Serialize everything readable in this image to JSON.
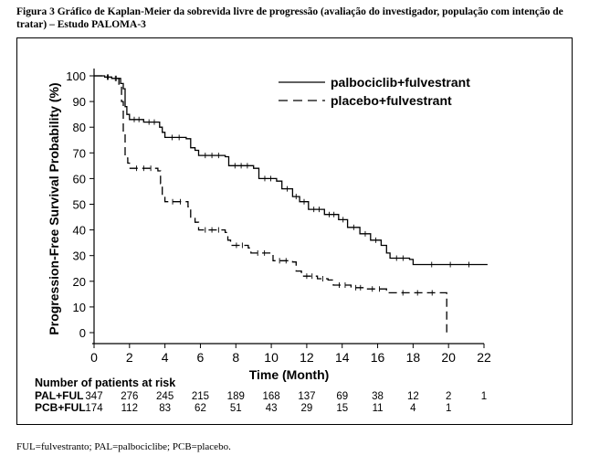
{
  "caption": "Figura 3 Gráfico de Kaplan-Meier da sobrevida livre de progressão (avaliação do investigador, população com intenção de tratar) – Estudo PALOMA-3",
  "footnote": "FUL=fulvestranto; PAL=palbociclibe; PCB=placebo.",
  "chart_data": {
    "type": "line",
    "title": "",
    "xlabel": "Time (Month)",
    "ylabel": "Progression-Free Survival Probability (%)",
    "xlim": [
      0,
      22
    ],
    "ylim": [
      0,
      100
    ],
    "x_ticks": [
      0,
      2,
      4,
      6,
      8,
      10,
      12,
      14,
      16,
      18,
      20,
      22
    ],
    "y_ticks": [
      0,
      10,
      20,
      30,
      40,
      50,
      60,
      70,
      80,
      90,
      100
    ],
    "legend_position": "top-right",
    "series": [
      {
        "name": "palbociclib+fulvestrant",
        "style": "solid",
        "points": [
          [
            0,
            100
          ],
          [
            0.6,
            99.5
          ],
          [
            1,
            99
          ],
          [
            1.5,
            97
          ],
          [
            1.65,
            95
          ],
          [
            1.75,
            88
          ],
          [
            1.85,
            85
          ],
          [
            2,
            83
          ],
          [
            2.8,
            82
          ],
          [
            3.7,
            80
          ],
          [
            3.85,
            78
          ],
          [
            4,
            76
          ],
          [
            5.2,
            75.5
          ],
          [
            5.45,
            72
          ],
          [
            5.7,
            71
          ],
          [
            5.9,
            69
          ],
          [
            7.4,
            68.5
          ],
          [
            7.6,
            65
          ],
          [
            9,
            64
          ],
          [
            9.3,
            60
          ],
          [
            10.3,
            59
          ],
          [
            10.6,
            56
          ],
          [
            11.2,
            53
          ],
          [
            11.6,
            51
          ],
          [
            12.1,
            48
          ],
          [
            13,
            46
          ],
          [
            13.8,
            44
          ],
          [
            14.3,
            41
          ],
          [
            15,
            38.5
          ],
          [
            15.6,
            36
          ],
          [
            16.2,
            34
          ],
          [
            16.5,
            31
          ],
          [
            16.7,
            29
          ],
          [
            17.8,
            28.5
          ],
          [
            18,
            26.5
          ],
          [
            22.2,
            26.5
          ]
        ]
      },
      {
        "name": "placebo+fulvestrant",
        "style": "dashed",
        "points": [
          [
            0,
            100
          ],
          [
            0.5,
            99.5
          ],
          [
            1,
            99
          ],
          [
            1.4,
            96
          ],
          [
            1.55,
            90
          ],
          [
            1.65,
            78
          ],
          [
            1.75,
            68
          ],
          [
            1.9,
            66
          ],
          [
            2,
            64
          ],
          [
            3.6,
            63
          ],
          [
            3.75,
            58
          ],
          [
            3.85,
            53
          ],
          [
            4,
            51
          ],
          [
            5.3,
            49
          ],
          [
            5.45,
            45
          ],
          [
            5.7,
            43
          ],
          [
            5.9,
            40
          ],
          [
            7.4,
            39
          ],
          [
            7.55,
            36
          ],
          [
            7.7,
            34
          ],
          [
            8.7,
            33
          ],
          [
            8.85,
            31
          ],
          [
            10,
            30.5
          ],
          [
            10.1,
            28
          ],
          [
            11.2,
            27.5
          ],
          [
            11.4,
            24
          ],
          [
            11.7,
            22
          ],
          [
            12.6,
            21
          ],
          [
            13.2,
            20.5
          ],
          [
            13.5,
            18.5
          ],
          [
            14.5,
            17.5
          ],
          [
            15.3,
            17
          ],
          [
            16.5,
            16.5
          ],
          [
            16.6,
            15.5
          ],
          [
            19.9,
            15.5
          ],
          [
            19.9,
            0
          ]
        ]
      }
    ],
    "risk_table": {
      "title": "Number of patients at risk",
      "rows": [
        {
          "label": "PAL+FUL",
          "values": [
            "347",
            "276",
            "245",
            "215",
            "189",
            "168",
            "137",
            "69",
            "38",
            "12",
            "2",
            "1"
          ]
        },
        {
          "label": "PCB+FUL",
          "values": [
            "174",
            "112",
            "83",
            "62",
            "51",
            "43",
            "29",
            "15",
            "11",
            "4",
            "1",
            ""
          ]
        }
      ]
    }
  }
}
